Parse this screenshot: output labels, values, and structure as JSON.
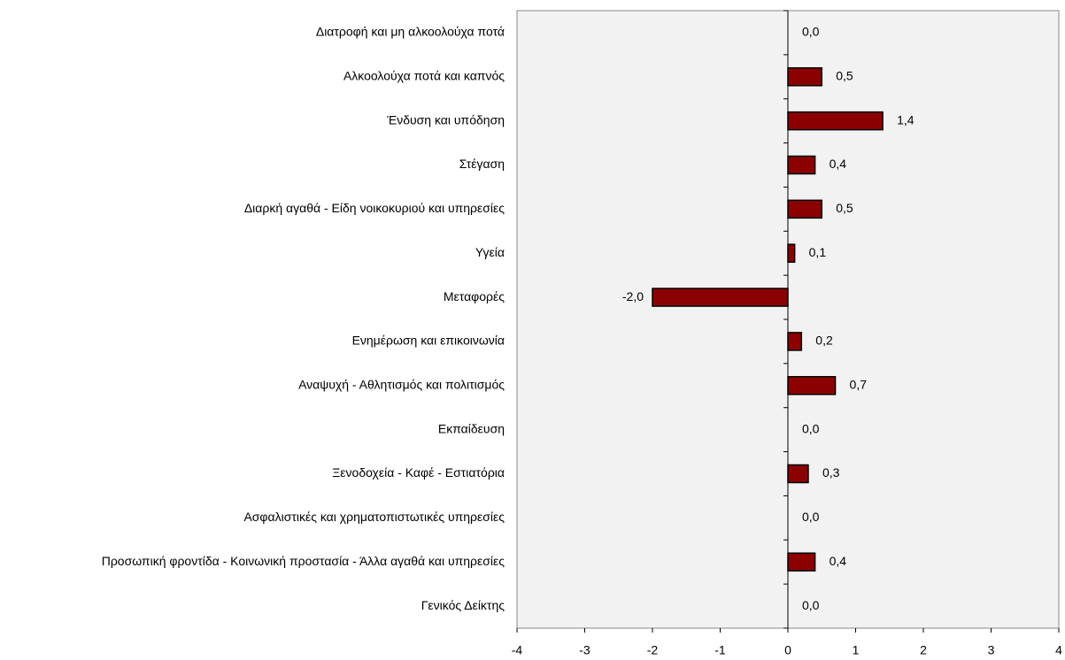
{
  "chart_data": {
    "type": "bar",
    "orientation": "horizontal",
    "categories": [
      "Διατροφή και μη αλκοολούχα ποτά",
      "Αλκοολούχα ποτά και καπνός",
      "Ένδυση και υπόδηση",
      "Στέγαση",
      "Διαρκή αγαθά - Είδη νοικοκυριού και υπηρεσίες",
      "Υγεία",
      "Μεταφορές",
      "Ενημέρωση και επικοινωνία",
      "Αναψυχή - Αθλητισμός και πολιτισμός",
      "Εκπαίδευση",
      "Ξενοδοχεία - Καφέ - Εστιατόρια",
      "Ασφαλιστικές και χρηματοπιστωτικές υπηρεσίες",
      "Προσωπική φροντίδα - Κοινωνική προστασία - Άλλα αγαθά και υπηρεσίες",
      "Γενικός Δείκτης"
    ],
    "values": [
      0.0,
      0.5,
      1.4,
      0.4,
      0.5,
      0.1,
      -2.0,
      0.2,
      0.7,
      0.0,
      0.3,
      0.0,
      0.4,
      0.0
    ],
    "value_labels": [
      "0,0",
      "0,5",
      "1,4",
      "0,4",
      "0,5",
      "0,1",
      "-2,0",
      "0,2",
      "0,7",
      "0,0",
      "0,3",
      "0,0",
      "0,4",
      "0,0"
    ],
    "color": "#8b0000",
    "xlim": [
      -4,
      4
    ],
    "xticks": [
      -4,
      -3,
      -2,
      -1,
      0,
      1,
      2,
      3,
      4
    ]
  }
}
